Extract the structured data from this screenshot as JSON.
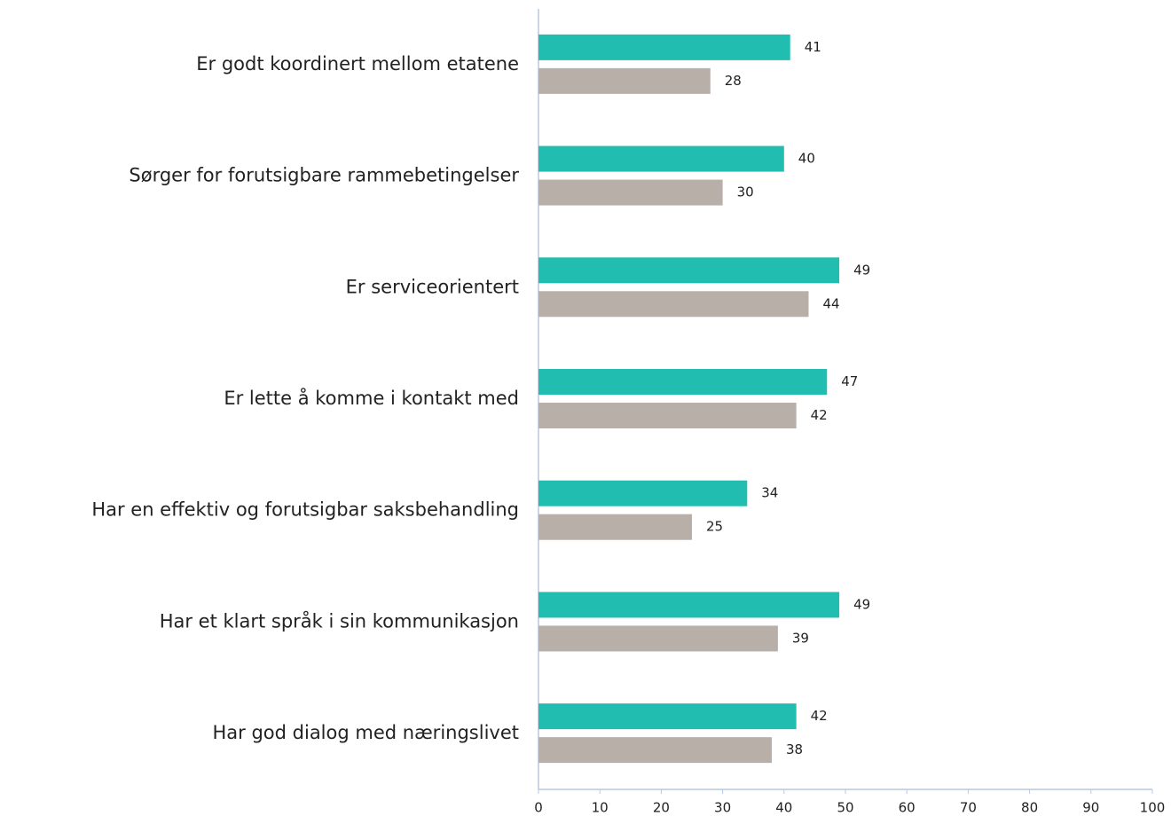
{
  "chart_data": {
    "type": "hbar",
    "categories": [
      "Er godt koordinert mellom etatene",
      "Sørger for forutsigbare rammebetingelser",
      "Er serviceorientert",
      "Er lette å komme i kontakt med",
      "Har en effektiv og forutsigbar saksbehandling",
      "Har et klart språk i sin kommunikasjon",
      "Har god dialog med næringslivet"
    ],
    "series": [
      {
        "color": "#20bdb0",
        "values": [
          41,
          40,
          49,
          47,
          34,
          49,
          42
        ]
      },
      {
        "color": "#b8afa9",
        "values": [
          28,
          30,
          44,
          42,
          25,
          39,
          38
        ]
      }
    ],
    "xlim": [
      0,
      100
    ],
    "xticks": [
      0,
      10,
      20,
      30,
      40,
      50,
      60,
      70,
      80,
      90,
      100
    ],
    "grid": false
  }
}
